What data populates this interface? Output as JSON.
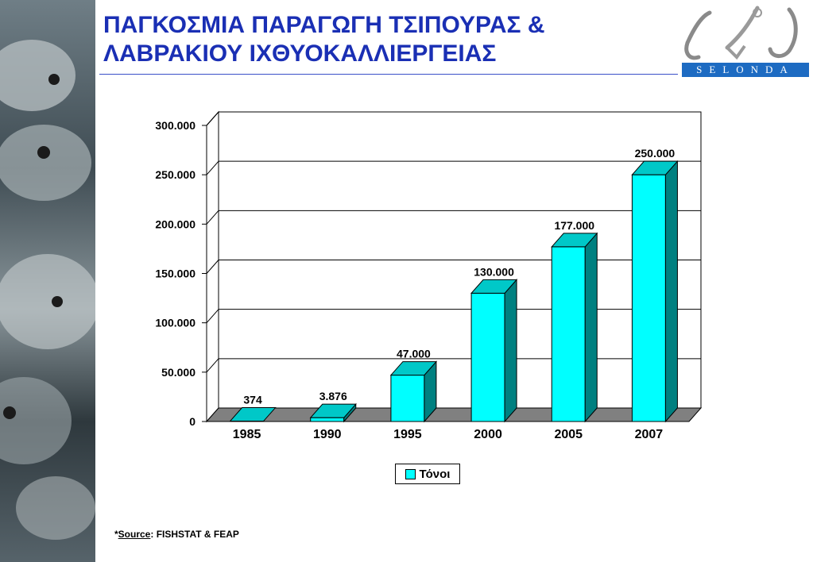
{
  "title": {
    "line1": "ΠΑΓΚΟΣΜΙΑ ΠΑΡΑΓΩΓΗ ΤΣΙΠΟΥΡΑΣ &",
    "line2": "ΛΑΒΡΑΚΙΟΥ ΙΧΘΥΟΚΑΛΛΙΕΡΓΕΙΑΣ"
  },
  "logo": {
    "text": "SELONDA"
  },
  "source": {
    "prefix": "*",
    "word": "Source",
    "rest": ": FISHSTAT & FEAP"
  },
  "colors": {
    "bar_front": "#00ffff",
    "bar_top": "#00c8c8",
    "bar_side": "#008080",
    "floor": "#808080",
    "title": "#1a2fb4",
    "logo_blue": "#1d6bc2"
  },
  "chart_data": {
    "type": "bar",
    "categories": [
      "1985",
      "1990",
      "1995",
      "2000",
      "2005",
      "2007"
    ],
    "series": [
      {
        "name": "Τόνοι",
        "values": [
          374,
          3876,
          47000,
          130000,
          177000,
          250000
        ]
      }
    ],
    "data_labels": [
      "374",
      "3.876",
      "47.000",
      "130.000",
      "177.000",
      "250.000"
    ],
    "y_ticks": [
      "0",
      "50.000",
      "100.000",
      "150.000",
      "200.000",
      "250.000",
      "300.000"
    ],
    "ylim": [
      0,
      300000
    ],
    "grid": true,
    "legend_position": "bottom",
    "three_d": true
  }
}
